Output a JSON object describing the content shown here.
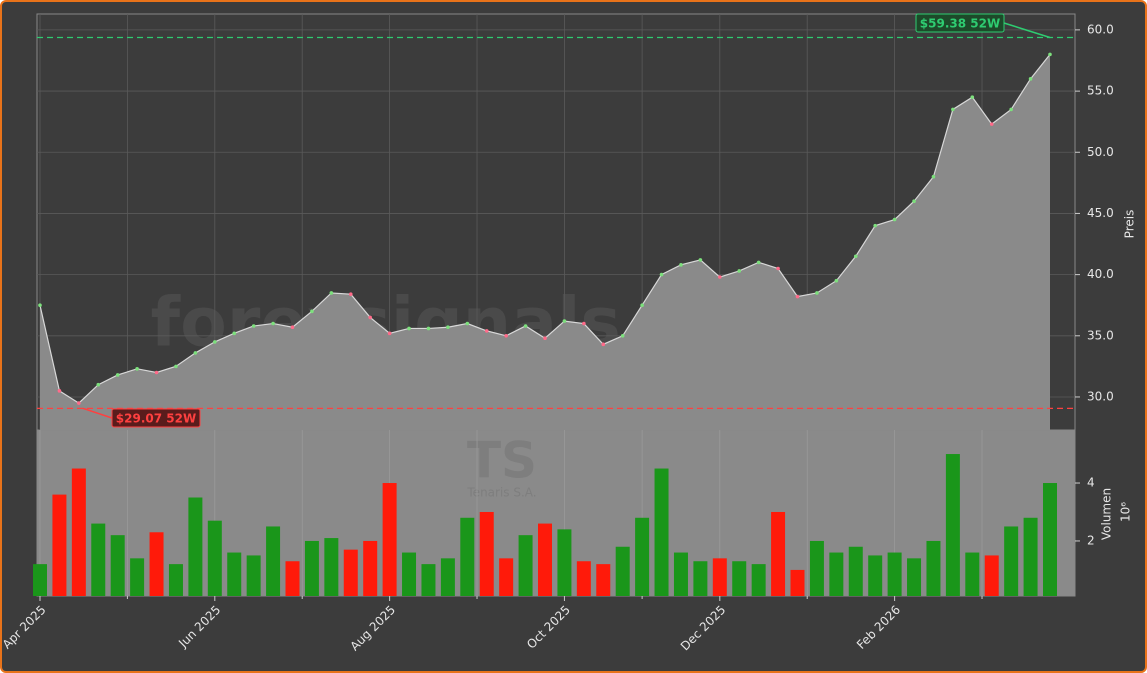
{
  "chart_data": [
    {
      "type": "area",
      "ylabel": "Preis",
      "watermark": "forexsignals.trade",
      "categories": [
        "Apr 2025",
        null,
        null,
        null,
        null,
        null,
        null,
        null,
        null,
        "Jun 2025",
        null,
        null,
        null,
        null,
        null,
        null,
        null,
        null,
        "Aug 2025",
        null,
        null,
        null,
        null,
        null,
        null,
        null,
        null,
        "Oct 2025",
        null,
        null,
        null,
        null,
        null,
        null,
        null,
        "Dec 2025",
        null,
        null,
        null,
        null,
        null,
        null,
        null,
        null,
        "Feb 2026",
        null,
        null,
        null,
        null,
        null,
        null,
        null,
        null
      ],
      "values": [
        37.5,
        30.5,
        29.5,
        31.0,
        31.8,
        32.3,
        32.0,
        32.5,
        33.6,
        34.5,
        35.2,
        35.8,
        36.0,
        35.7,
        37.0,
        38.5,
        38.4,
        36.5,
        35.2,
        35.6,
        35.6,
        35.7,
        36.0,
        35.4,
        35.0,
        35.8,
        34.8,
        36.2,
        36.0,
        34.3,
        35.0,
        37.5,
        40.0,
        40.8,
        41.2,
        39.8,
        40.3,
        41.0,
        40.5,
        38.2,
        38.5,
        39.5,
        41.5,
        44.0,
        44.5,
        46.0,
        48.0,
        53.5,
        54.5,
        52.3,
        53.5,
        56.0,
        58.0
      ],
      "color": "#8a8a8a",
      "line_color": "#d8d8d8",
      "ylim": [
        27.3,
        61.3
      ],
      "yticks": [
        {
          "value": 30,
          "label": "30.0"
        },
        {
          "value": 35,
          "label": "35.0"
        },
        {
          "value": 40,
          "label": "40.0"
        },
        {
          "value": 45,
          "label": "45.0"
        },
        {
          "value": 50,
          "label": "50.0"
        },
        {
          "value": 55,
          "label": "55.0"
        },
        {
          "value": 60,
          "label": "60.0"
        }
      ],
      "grid": true,
      "high": {
        "value": 59.38,
        "label": "$59.38 52W",
        "color": "#2ecc71"
      },
      "low": {
        "value": 29.07,
        "label": "$29.07 52W",
        "color": "#ff4040"
      }
    },
    {
      "type": "bar",
      "ylabel": "Volumen",
      "offset_label": "10⁶",
      "watermark": "TS",
      "watermark_sub": "Tenaris S.A.",
      "values": [
        1.2,
        3.6,
        4.5,
        2.6,
        2.2,
        1.4,
        2.3,
        1.2,
        3.5,
        2.7,
        1.6,
        1.5,
        2.5,
        1.3,
        2.0,
        2.1,
        1.7,
        2.0,
        4.0,
        1.6,
        1.2,
        1.4,
        2.8,
        3.0,
        1.4,
        2.2,
        2.6,
        2.4,
        1.3,
        1.2,
        1.8,
        2.8,
        4.5,
        1.6,
        1.3,
        1.4,
        1.3,
        1.2,
        3.0,
        1.0,
        2.0,
        1.6,
        1.8,
        1.5,
        1.6,
        1.4,
        2.0,
        5.0,
        1.6,
        1.5,
        2.5,
        2.8,
        4.0
      ],
      "up_color": "#1a961a",
      "down_color": "#ff1a0a",
      "ylim": [
        0.1,
        5.83
      ],
      "yticks": [
        2,
        4
      ]
    }
  ]
}
